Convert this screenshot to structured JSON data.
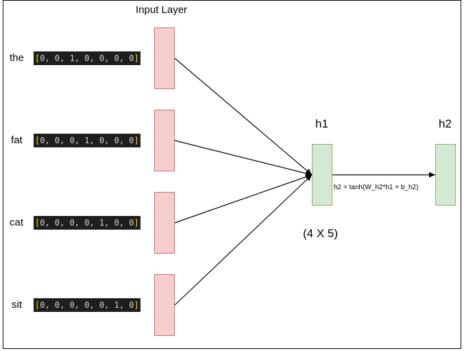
{
  "title": "Input Layer",
  "inputs": [
    {
      "word": "the",
      "vector": "0, 0, 1, 0, 0, 0, 0"
    },
    {
      "word": "fat",
      "vector": "0, 0, 0, 1, 0, 0, 0"
    },
    {
      "word": "cat",
      "vector": "0, 0, 0, 0, 1, 0, 0"
    },
    {
      "word": "sit",
      "vector": "0, 0, 0, 0, 0, 1, 0"
    }
  ],
  "h1": {
    "label": "h1",
    "dims": "(4 X 5)"
  },
  "h2": {
    "label": "h2",
    "equation": "h2 = tanh(W_h2*h1 + b_h2)"
  },
  "colors": {
    "input_fill": "#f8cecc",
    "input_stroke": "#d46b69",
    "hidden_fill": "#d5e8d4",
    "hidden_stroke": "#82b366",
    "vector_bg": "#1e1e1e"
  }
}
